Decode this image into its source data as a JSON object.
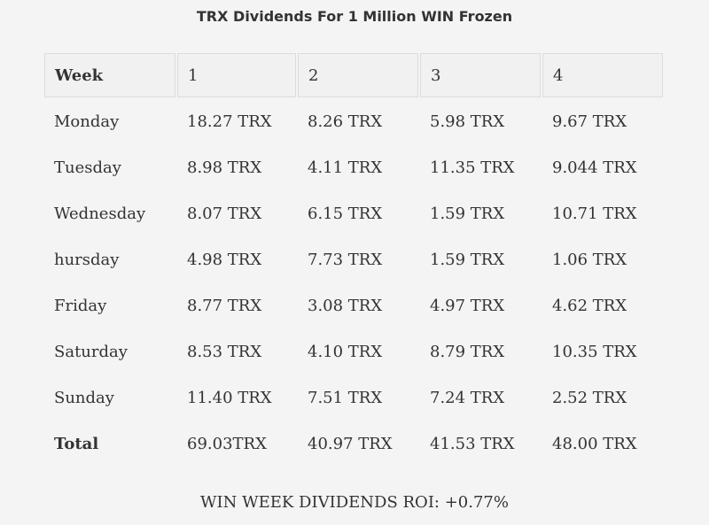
{
  "chart_data": {
    "type": "table",
    "title": "TRX Dividends For 1 Million WIN Frozen",
    "columns": [
      "Week",
      "1",
      "2",
      "3",
      "4"
    ],
    "rows": [
      {
        "label": "Monday",
        "values": [
          "18.27 TRX",
          "8.26 TRX",
          "5.98 TRX",
          "9.67 TRX"
        ]
      },
      {
        "label": "Tuesday",
        "values": [
          "8.98 TRX",
          "4.11 TRX",
          "11.35 TRX",
          "9.044 TRX"
        ]
      },
      {
        "label": "Wednesday",
        "values": [
          "8.07 TRX",
          "6.15 TRX",
          "1.59 TRX",
          "10.71 TRX"
        ]
      },
      {
        "label": "hursday",
        "values": [
          "4.98 TRX",
          "7.73 TRX",
          "1.59 TRX",
          "1.06 TRX"
        ]
      },
      {
        "label": "Friday",
        "values": [
          "8.77 TRX",
          "3.08 TRX",
          "4.97 TRX",
          "4.62 TRX"
        ]
      },
      {
        "label": "Saturday",
        "values": [
          "8.53 TRX",
          "4.10 TRX",
          "8.79 TRX",
          "10.35 TRX"
        ]
      },
      {
        "label": "Sunday",
        "values": [
          "11.40 TRX",
          "7.51 TRX",
          "7.24 TRX",
          "2.52 TRX"
        ]
      },
      {
        "label": "Total",
        "values": [
          "69.03TRX",
          "40.97 TRX",
          "41.53 TRX",
          "48.00 TRX"
        ]
      }
    ],
    "footer": "WIN WEEK DIVIDENDS ROI: +0.77%"
  }
}
